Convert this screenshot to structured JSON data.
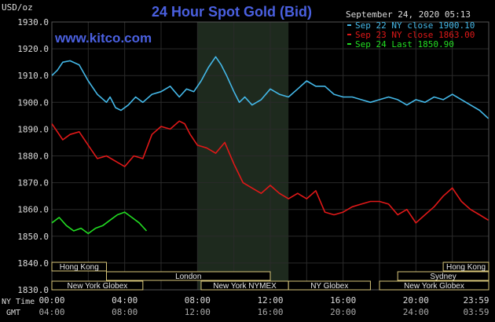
{
  "chart_data": {
    "type": "line",
    "title": "24 Hour Spot Gold (Bid)",
    "watermark": "www.kitco.com",
    "timestamp": "September 24, 2020 05:13",
    "ylabel": "USD/oz",
    "ylim": [
      1830.0,
      1930.0
    ],
    "yticks": [
      "1930.0",
      "1920.0",
      "1910.0",
      "1900.0",
      "1890.0",
      "1880.0",
      "1870.0",
      "1860.0",
      "1850.0",
      "1840.0",
      "1830.0"
    ],
    "x_row1_label": "NY Time",
    "x_row2_label": "GMT",
    "ny_ticks": [
      "00:00",
      "04:00",
      "08:00",
      "12:00",
      "16:00",
      "20:00",
      "23:59"
    ],
    "gmt_ticks": [
      "04:00",
      "08:00",
      "12:00",
      "16:00",
      "20:00",
      "24:00",
      "03:59"
    ],
    "x_range_hours": [
      0,
      24
    ],
    "grid": true,
    "colors": {
      "background": "#000000",
      "grid": "#2a2a2a",
      "session_shade": "#1e2a1e",
      "axis_text": "#dddddd",
      "title": "#4a60e0",
      "watermark": "#4a60e0",
      "session_box_fill": "#000000",
      "session_box_border": "#d8c67a",
      "session_box_text": "#e8e8e8"
    },
    "series": [
      {
        "name": "Sep 22 NY close 1900.10",
        "color": "#44b8e8",
        "x": [
          0.0,
          0.3,
          0.6,
          1.0,
          1.5,
          2.0,
          2.5,
          3.0,
          3.2,
          3.5,
          3.8,
          4.2,
          4.6,
          5.0,
          5.5,
          6.0,
          6.5,
          7.0,
          7.4,
          7.8,
          8.2,
          8.6,
          9.0,
          9.3,
          9.6,
          10.0,
          10.3,
          10.6,
          11.0,
          11.5,
          12.0,
          12.5,
          13.0,
          13.5,
          14.0,
          14.5,
          15.0,
          15.5,
          16.0,
          16.5,
          17.0,
          17.5,
          18.0,
          18.5,
          19.0,
          19.5,
          20.0,
          20.5,
          21.0,
          21.5,
          22.0,
          22.5,
          23.0,
          23.5,
          23.98
        ],
        "y": [
          1910,
          1912,
          1915,
          1915.5,
          1914,
          1908,
          1903,
          1900,
          1902,
          1898,
          1897,
          1899,
          1902,
          1900,
          1903,
          1904,
          1906,
          1902,
          1905,
          1904,
          1908,
          1913,
          1917,
          1914,
          1910,
          1904,
          1900,
          1902,
          1899,
          1901,
          1905,
          1903,
          1902,
          1905,
          1908,
          1906,
          1906,
          1903,
          1902,
          1902,
          1901,
          1900,
          1901,
          1902,
          1901,
          1899,
          1901,
          1900,
          1902,
          1901,
          1903,
          1901,
          1899,
          1897,
          1894
        ]
      },
      {
        "name": "Sep 23 NY close 1863.00",
        "color": "#e01818",
        "x": [
          0.0,
          0.3,
          0.6,
          1.0,
          1.5,
          2.0,
          2.5,
          3.0,
          3.5,
          4.0,
          4.5,
          5.0,
          5.5,
          6.0,
          6.5,
          7.0,
          7.3,
          7.6,
          8.0,
          8.5,
          9.0,
          9.5,
          10.0,
          10.5,
          11.0,
          11.5,
          12.0,
          12.5,
          13.0,
          13.5,
          14.0,
          14.5,
          15.0,
          15.5,
          16.0,
          16.5,
          17.0,
          17.5,
          18.0,
          18.5,
          19.0,
          19.5,
          20.0,
          20.5,
          21.0,
          21.5,
          22.0,
          22.5,
          23.0,
          23.5,
          23.98
        ],
        "y": [
          1892,
          1889,
          1886,
          1888,
          1889,
          1884,
          1879,
          1880,
          1878,
          1876,
          1880,
          1879,
          1888,
          1891,
          1890,
          1893,
          1892,
          1888,
          1884,
          1883,
          1881,
          1885,
          1877,
          1870,
          1868,
          1866,
          1869,
          1866,
          1864,
          1866,
          1864,
          1867,
          1859,
          1858,
          1859,
          1861,
          1862,
          1863,
          1863,
          1862,
          1858,
          1860,
          1855,
          1858,
          1861,
          1865,
          1868,
          1863,
          1860,
          1858,
          1856
        ]
      },
      {
        "name": "Sep 24 Last 1850.90",
        "color": "#22dd22",
        "x": [
          0.0,
          0.4,
          0.8,
          1.2,
          1.6,
          2.0,
          2.4,
          2.8,
          3.2,
          3.6,
          4.0,
          4.4,
          4.8,
          5.2
        ],
        "y": [
          1855,
          1857,
          1854,
          1852,
          1853,
          1851,
          1853,
          1854,
          1856,
          1858,
          1859,
          1857,
          1855,
          1852
        ]
      }
    ],
    "sessions": [
      {
        "label": "Hong Kong",
        "row": 0,
        "start": 0.0,
        "end": 3.0,
        "extends": "right"
      },
      {
        "label": "London",
        "row": 1,
        "start": 3.0,
        "end": 12.0,
        "extends": "left"
      },
      {
        "label": "New York Globex",
        "row": 2,
        "start": 0.0,
        "end": 5.0,
        "extends": "right"
      },
      {
        "label": "New York NYMEX",
        "row": 2,
        "start": 8.2,
        "end": 13.0,
        "extends": "none"
      },
      {
        "label": "NY Globex",
        "row": 2,
        "start": 13.0,
        "end": 17.5,
        "extends": "none"
      },
      {
        "label": "Hong Kong",
        "row": 0,
        "start": 21.5,
        "end": 24.0,
        "extends": "left"
      },
      {
        "label": "Sydney",
        "row": 1,
        "start": 19.0,
        "end": 24.0,
        "extends": "left"
      },
      {
        "label": "New York Globex",
        "row": 2,
        "start": 18.0,
        "end": 24.0,
        "extends": "left"
      }
    ],
    "shaded_period": [
      8.0,
      13.0
    ]
  }
}
